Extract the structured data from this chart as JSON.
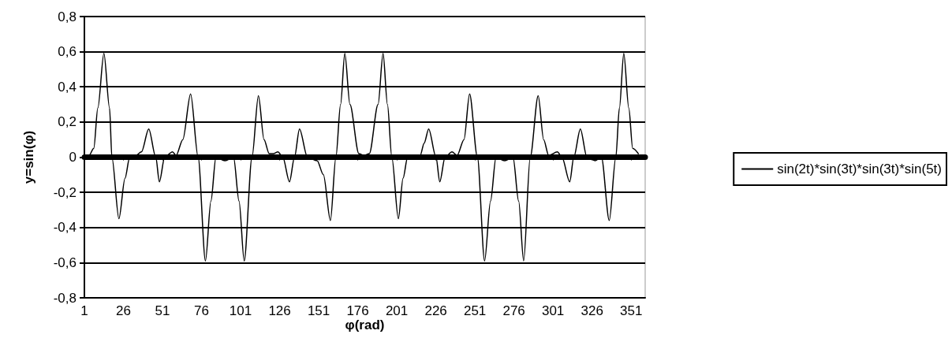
{
  "chart_data": {
    "type": "line",
    "xlabel": "φ(rad)",
    "ylabel": "y=sin(φ)",
    "xlim": [
      1,
      360
    ],
    "xticks": [
      1,
      26,
      51,
      76,
      101,
      126,
      151,
      176,
      201,
      226,
      251,
      276,
      301,
      326,
      351
    ],
    "ylim": [
      -0.8,
      0.8
    ],
    "yticks": [
      {
        "value": -0.8,
        "label": "-0,8"
      },
      {
        "value": -0.6,
        "label": "-0,6"
      },
      {
        "value": -0.4,
        "label": "-0,4"
      },
      {
        "value": -0.2,
        "label": "-0,2"
      },
      0,
      {
        "value": 0.2,
        "label": "0,2"
      },
      {
        "value": 0.4,
        "label": "0,4"
      },
      {
        "value": 0.6,
        "label": "0,6"
      },
      {
        "value": 0.8,
        "label": "0,8"
      }
    ],
    "grid": "y",
    "legend": "right",
    "marker": "none",
    "line_style": "solid",
    "series": [
      {
        "name": "sin(2t)*sin(3t)*sin(3t)*sin(5t)",
        "color": "#000000",
        "x": [
          1,
          4,
          7,
          9.6,
          13.5,
          17.1,
          18.6,
          23.1,
          27,
          30,
          34,
          37.5,
          42.2,
          46.7,
          49,
          52.4,
          57.4,
          59.7,
          64,
          69,
          73.8,
          78.5,
          82,
          85.2,
          91,
          96.5,
          100,
          103.3,
          108.3,
          112.4,
          116,
          119.3,
          122,
          124.9,
          128,
          132.3,
          135.5,
          138.7,
          143.8,
          150,
          154,
          158.5,
          162,
          165,
          167.7,
          171,
          176.7,
          180,
          183.4,
          189,
          192.2,
          195,
          197.8,
          202,
          205,
          207.9,
          212,
          216,
          218.5,
          221.4,
          226.1,
          228.5,
          231.9,
          236.3,
          239.6,
          244,
          247.6,
          252.6,
          257.2,
          261,
          264.5,
          270,
          275.4,
          279,
          282.2,
          286.4,
          291.5,
          295,
          298.2,
          303.8,
          306.7,
          311.7,
          314.3,
          318.5,
          322.7,
          328,
          332,
          337,
          341.2,
          343.5,
          346.3,
          349.5,
          352,
          355.6
        ],
        "values": [
          0,
          0.01,
          0.05,
          0.28,
          0.59,
          0.28,
          0,
          -0.35,
          -0.12,
          0,
          0.01,
          0.03,
          0.16,
          0,
          -0.14,
          0,
          0.03,
          0.01,
          0.1,
          0.36,
          0,
          -0.59,
          -0.25,
          0,
          -0.02,
          0,
          -0.25,
          -0.59,
          0,
          0.35,
          0.1,
          0.02,
          0.02,
          0.03,
          0,
          -0.14,
          0,
          0.16,
          0,
          -0.02,
          -0.1,
          -0.36,
          0,
          0.3,
          0.59,
          0.3,
          0.02,
          0.01,
          0.02,
          0.3,
          0.59,
          0.3,
          0,
          -0.35,
          -0.12,
          0,
          -0.01,
          0.01,
          0.08,
          0.16,
          0,
          -0.14,
          0,
          0.03,
          0.01,
          0.1,
          0.36,
          0,
          -0.59,
          -0.25,
          0,
          -0.02,
          0,
          -0.25,
          -0.59,
          0,
          0.35,
          0.1,
          0.01,
          0.03,
          0,
          -0.14,
          0,
          0.16,
          0,
          -0.02,
          0,
          -0.36,
          0,
          0.28,
          0.59,
          0.28,
          0.05,
          0.02
        ]
      }
    ]
  }
}
